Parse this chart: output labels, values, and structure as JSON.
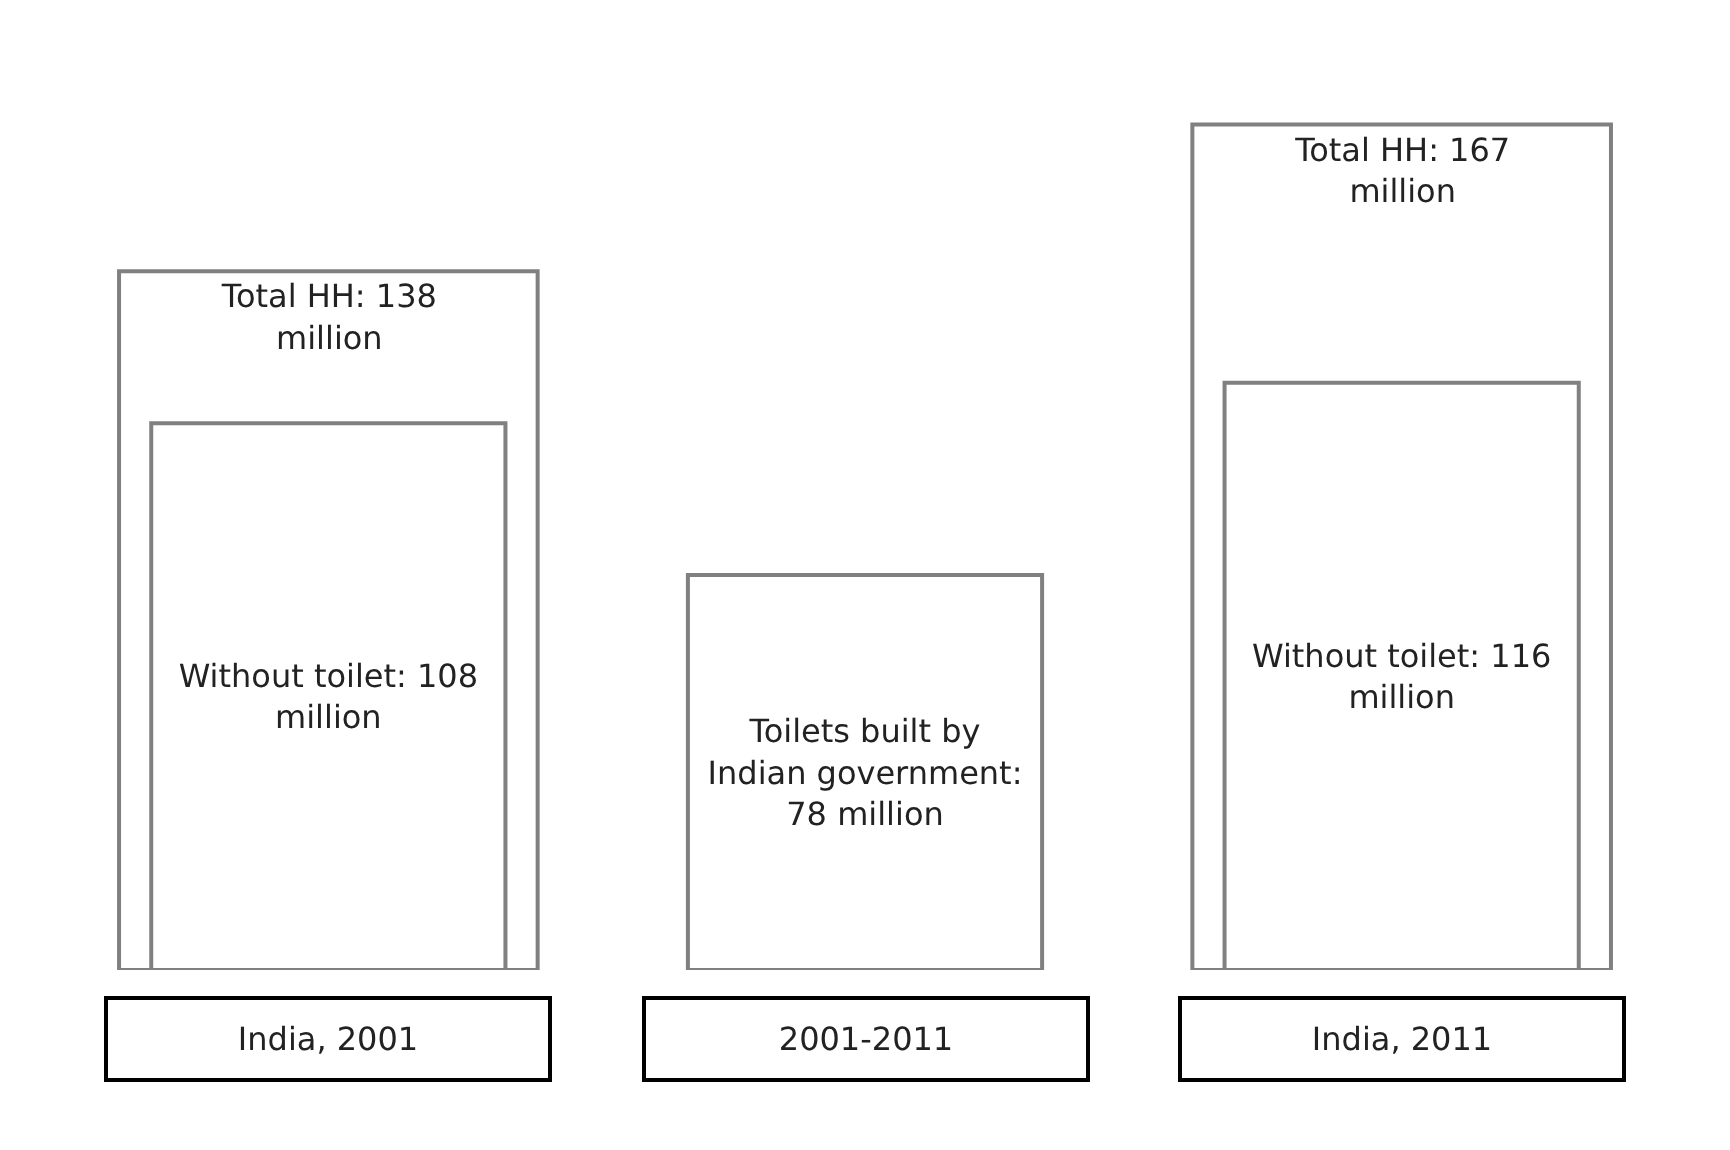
{
  "chart_data": {
    "type": "bar",
    "categories": [
      "India, 2001",
      "2001-2011",
      "India, 2011"
    ],
    "series": [
      {
        "color": "#808080",
        "values": [
          138,
          null,
          167
        ],
        "value_labels": [
          "Total HH: 138 million",
          null,
          "Total HH: 167 million"
        ]
      },
      {
        "color": "#808080",
        "values": [
          108,
          78,
          116
        ],
        "value_labels": [
          "Without toilet: 108 million",
          "Toilets built by Indian government: 78 million",
          "Without toilet: 116 million"
        ]
      }
    ]
  }
}
